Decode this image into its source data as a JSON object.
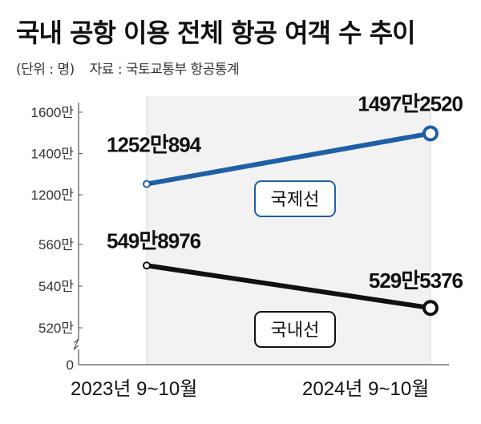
{
  "title": "국내 공항 이용 전체 항공 여객 수 추이",
  "unit_note": "(단위 : 명)",
  "source_note": "자료 : 국토교통부 항공통계",
  "colors": {
    "international": "#1f5fa6",
    "domestic": "#111111",
    "band": "#f2f2f2",
    "axis": "#555555"
  },
  "chart_data": [
    {
      "type": "line",
      "categories": [
        "2023년 9~10월",
        "2024년 9~10월"
      ],
      "series": [
        {
          "name": "국제선",
          "values": [
            12520894,
            14972520
          ],
          "labels": [
            "1252만894",
            "1497만2520"
          ]
        }
      ],
      "yticks": [
        {
          "value": 16000000,
          "label": "1600만"
        },
        {
          "value": 14000000,
          "label": "1400만"
        },
        {
          "value": 12000000,
          "label": "1200만"
        }
      ],
      "ylim": [
        12000000,
        16000000
      ]
    },
    {
      "type": "line",
      "categories": [
        "2023년 9~10월",
        "2024년 9~10월"
      ],
      "series": [
        {
          "name": "국내선",
          "values": [
            5498976,
            5295376
          ],
          "labels": [
            "549만8976",
            "529만5376"
          ]
        }
      ],
      "yticks": [
        {
          "value": 5600000,
          "label": "560만"
        },
        {
          "value": 5400000,
          "label": "540만"
        },
        {
          "value": 5200000,
          "label": "520만"
        },
        {
          "value": 0,
          "label": "0"
        }
      ],
      "ylim": [
        5200000,
        5600000
      ],
      "axis_break": true
    }
  ]
}
